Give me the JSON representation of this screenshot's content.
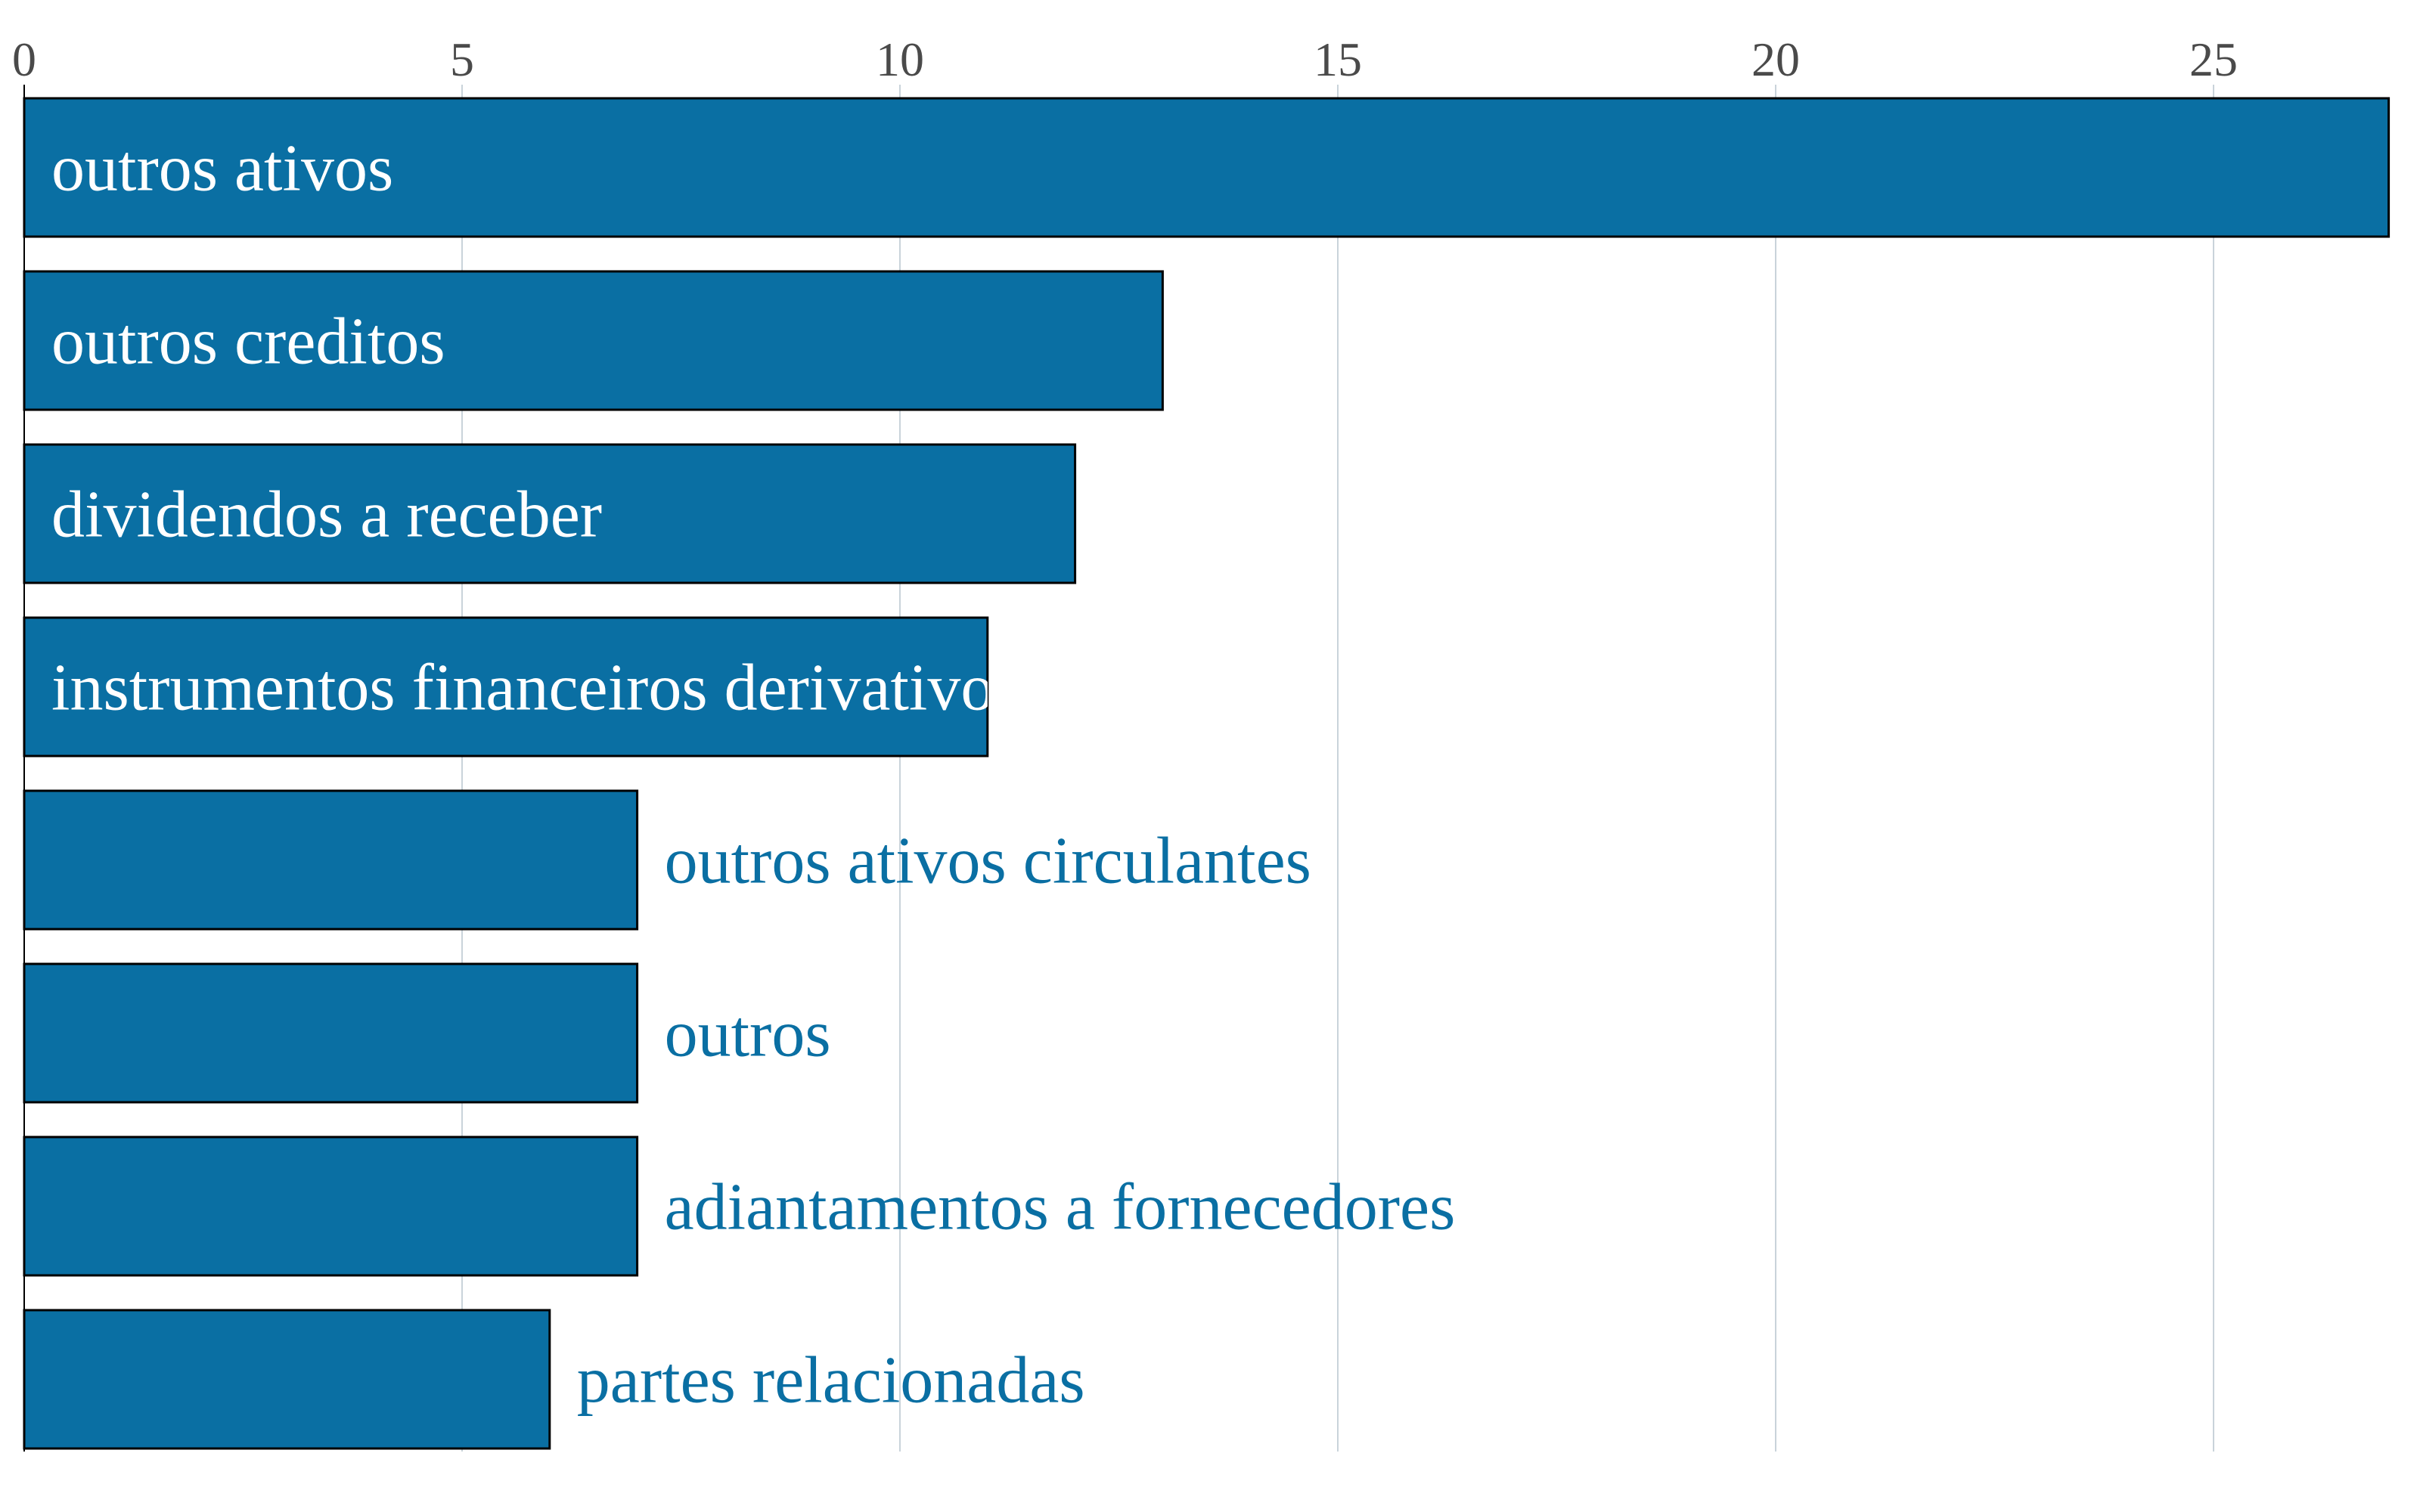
{
  "chart_data": {
    "type": "bar",
    "orientation": "horizontal",
    "title": "",
    "xlabel": "",
    "ylabel": "",
    "xlim": [
      0,
      27
    ],
    "x_ticks": [
      0,
      5,
      10,
      15,
      20,
      25
    ],
    "x_axis_position": "top",
    "grid": true,
    "legend": "none",
    "categories": [
      "outros ativos",
      "outros creditos",
      "dividendos a receber",
      "instrumentos financeiros derivativos",
      "outros ativos circulantes",
      "outros",
      "adiantamentos a fornecedores",
      "partes relacionadas"
    ],
    "values": [
      27,
      13,
      12,
      11,
      7,
      7,
      7,
      6
    ],
    "colors": {
      "bar": "#0a6fa3",
      "bar_edge": "#000000",
      "label_inside": "#ffffff",
      "label_outside": "#0a6fa3",
      "grid": "#c9d3da",
      "tick_text": "#4a4a4a"
    }
  }
}
